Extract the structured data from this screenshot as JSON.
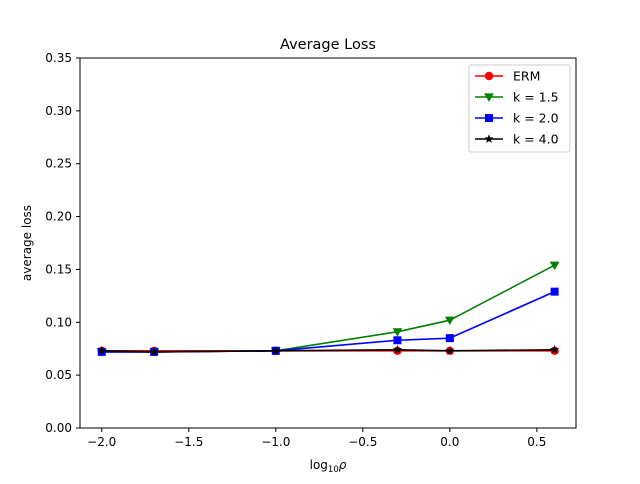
{
  "chart_data": {
    "type": "line",
    "title": "Average Loss",
    "xlabel_main": "log",
    "xlabel_sub": "10",
    "xlabel_var": "ρ",
    "ylabel": "average loss",
    "xlim": [
      -2.125,
      0.725
    ],
    "ylim": [
      0.0,
      0.35
    ],
    "xticks": [
      -2.0,
      -1.5,
      -1.0,
      -0.5,
      0.0,
      0.5
    ],
    "xtick_labels": [
      "−2.0",
      "−1.5",
      "−1.0",
      "−0.5",
      "0.0",
      "0.5"
    ],
    "yticks": [
      0.0,
      0.05,
      0.1,
      0.15,
      0.2,
      0.25,
      0.3,
      0.35
    ],
    "ytick_labels": [
      "0.00",
      "0.05",
      "0.10",
      "0.15",
      "0.20",
      "0.25",
      "0.30",
      "0.35"
    ],
    "grid": false,
    "legend_position": "top-right",
    "x": [
      -2.0,
      -1.699,
      -1.0,
      -0.301,
      0.0,
      0.602
    ],
    "series": [
      {
        "name": "ERM",
        "color": "#ff0000",
        "marker": "circle",
        "values": [
          0.073,
          0.073,
          0.073,
          0.073,
          0.073,
          0.073
        ]
      },
      {
        "name": "k = 1.5",
        "color": "#008000",
        "marker": "triangle-down",
        "values": [
          0.072,
          0.072,
          0.073,
          0.091,
          0.102,
          0.154
        ]
      },
      {
        "name": "k = 2.0",
        "color": "#0000ff",
        "marker": "square",
        "values": [
          0.072,
          0.072,
          0.073,
          0.083,
          0.085,
          0.129
        ]
      },
      {
        "name": "k = 4.0",
        "color": "#000000",
        "marker": "star",
        "values": [
          0.073,
          0.072,
          0.073,
          0.074,
          0.073,
          0.074
        ]
      }
    ]
  }
}
